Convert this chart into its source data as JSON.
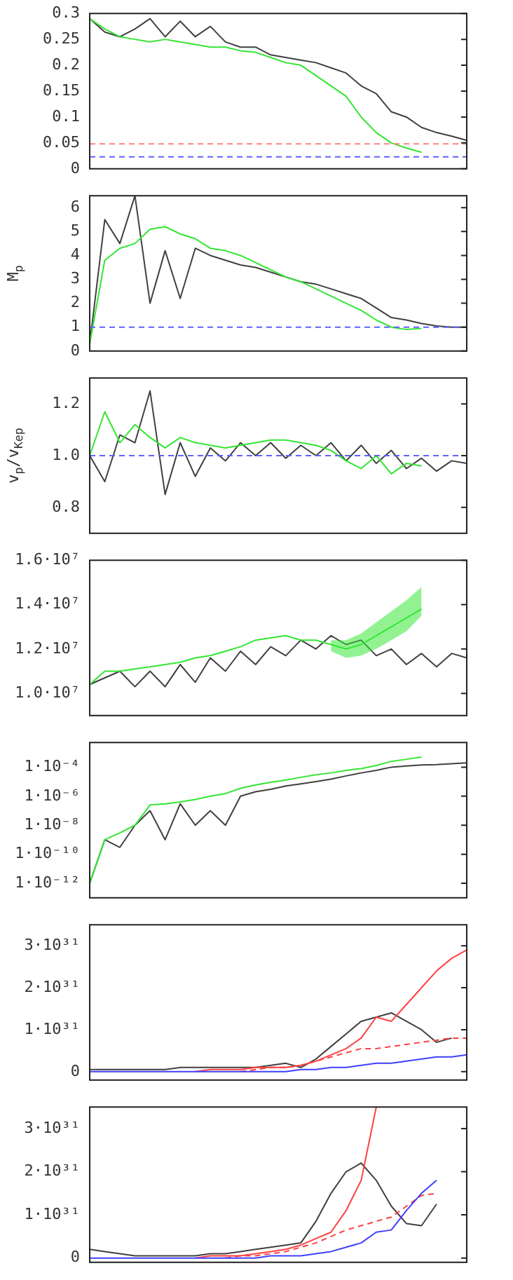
{
  "chart_data": [
    {
      "type": "line",
      "tick_labels": "y",
      "categories": [
        null,
        null,
        null,
        null,
        null,
        null,
        null,
        null,
        null,
        null,
        null,
        null,
        null,
        null,
        null,
        null,
        null,
        null,
        null,
        null,
        null,
        null,
        null,
        null,
        null,
        null
      ],
      "ylim": [
        0,
        0.3
      ],
      "yticks": [
        0,
        0.05,
        0.1,
        0.15,
        0.2,
        0.25,
        0.3
      ],
      "series": [
        {
          "color": "#404040",
          "values": [
            0.29,
            0.264,
            0.255,
            0.27,
            0.29,
            0.255,
            0.285,
            0.255,
            0.275,
            0.245,
            0.235,
            0.235,
            0.22,
            0.215,
            0.21,
            0.205,
            0.195,
            0.185,
            0.16,
            0.145,
            0.11,
            0.1,
            0.08,
            0.07,
            0.063,
            0.055
          ]
        },
        {
          "color": "#33e633",
          "values": [
            0.29,
            0.27,
            0.255,
            0.25,
            0.245,
            0.25,
            0.245,
            0.24,
            0.235,
            0.235,
            0.228,
            0.225,
            0.215,
            0.205,
            0.2,
            0.18,
            0.16,
            0.14,
            0.1,
            0.07,
            0.05,
            0.04,
            0.032,
            null,
            null,
            null
          ]
        }
      ],
      "ref_lines": [
        {
          "axis": "y",
          "value": 0.048,
          "color": "#ff8080",
          "line_style": "dashed"
        },
        {
          "axis": "y",
          "value": 0.023,
          "color": "#6060ff",
          "line_style": "dashed"
        }
      ]
    },
    {
      "type": "line",
      "tick_labels": "y",
      "ylabel": "M$_{p}$",
      "categories": [
        null,
        null,
        null,
        null,
        null,
        null,
        null,
        null,
        null,
        null,
        null,
        null,
        null,
        null,
        null,
        null,
        null,
        null,
        null,
        null,
        null,
        null,
        null,
        null,
        null,
        null
      ],
      "ylim": [
        0,
        6.5
      ],
      "yticks": [
        0,
        1,
        2,
        3,
        4,
        5,
        6
      ],
      "series": [
        {
          "color": "#404040",
          "values": [
            0.3,
            5.5,
            4.5,
            6.5,
            2.0,
            4.2,
            2.2,
            4.3,
            4.0,
            3.8,
            3.6,
            3.5,
            3.3,
            3.1,
            2.9,
            2.8,
            2.6,
            2.4,
            2.2,
            1.8,
            1.4,
            1.3,
            1.15,
            1.05,
            1.0,
            1.0
          ]
        },
        {
          "color": "#33e633",
          "values": [
            0.3,
            3.8,
            4.3,
            4.5,
            5.1,
            5.2,
            4.9,
            4.7,
            4.3,
            4.2,
            4.0,
            3.7,
            3.4,
            3.1,
            2.9,
            2.6,
            2.3,
            2.0,
            1.7,
            1.3,
            1.0,
            0.9,
            0.95,
            null,
            null,
            null
          ]
        }
      ],
      "ref_lines": [
        {
          "axis": "y",
          "value": 1,
          "color": "#6060ff",
          "line_style": "dashed"
        }
      ]
    },
    {
      "type": "line",
      "tick_labels": "y",
      "ylabel": "v$_{p}$/v$_{Kep}$",
      "categories": [
        null,
        null,
        null,
        null,
        null,
        null,
        null,
        null,
        null,
        null,
        null,
        null,
        null,
        null,
        null,
        null,
        null,
        null,
        null,
        null,
        null,
        null,
        null,
        null,
        null,
        null
      ],
      "ylim": [
        0.7,
        1.3
      ],
      "yticks": [
        0.8,
        {
          "value": 1,
          "label": "1.0"
        },
        1.2
      ],
      "series": [
        {
          "color": "#404040",
          "values": [
            1.0,
            0.9,
            1.08,
            1.05,
            1.25,
            0.85,
            1.05,
            0.92,
            1.03,
            0.98,
            1.05,
            1.0,
            1.05,
            0.99,
            1.04,
            1.0,
            1.05,
            0.98,
            1.04,
            0.97,
            1.02,
            0.95,
            0.99,
            0.94,
            0.98,
            0.97
          ]
        },
        {
          "color": "#33e633",
          "values": [
            1.0,
            1.17,
            1.05,
            1.12,
            1.07,
            1.03,
            1.07,
            1.05,
            1.04,
            1.03,
            1.04,
            1.05,
            1.06,
            1.06,
            1.05,
            1.04,
            1.02,
            0.98,
            0.95,
            1.0,
            0.93,
            0.97,
            0.96,
            null,
            null,
            null
          ]
        }
      ],
      "ref_lines": [
        {
          "axis": "y",
          "value": 1,
          "color": "#6060ff",
          "line_style": "dashed"
        }
      ]
    },
    {
      "type": "line",
      "tick_labels": "y",
      "categories": [
        null,
        null,
        null,
        null,
        null,
        null,
        null,
        null,
        null,
        null,
        null,
        null,
        null,
        null,
        null,
        null,
        null,
        null,
        null,
        null,
        null,
        null,
        null,
        null,
        null,
        null
      ],
      "ylim": [
        9000000,
        16000000
      ],
      "yticks": [
        {
          "value": 10000000,
          "label": "1.0·10⁷"
        },
        {
          "value": 12000000,
          "label": "1.2·10⁷"
        },
        {
          "value": 14000000,
          "label": "1.4·10⁷"
        },
        {
          "value": 16000000,
          "label": "1.6·10⁷"
        }
      ],
      "series": [
        {
          "color": "#404040",
          "values": [
            10400000,
            10700000,
            11000000,
            10300000,
            11000000,
            10300000,
            11300000,
            10500000,
            11600000,
            11000000,
            11900000,
            11300000,
            12100000,
            11700000,
            12400000,
            12000000,
            12600000,
            12200000,
            12400000,
            11700000,
            12000000,
            11300000,
            11800000,
            11200000,
            11800000,
            11600000
          ]
        },
        {
          "color": "#33e633",
          "values": [
            10400000,
            11000000,
            11000000,
            11100000,
            11200000,
            11300000,
            11400000,
            11600000,
            11700000,
            11900000,
            12100000,
            12400000,
            12500000,
            12600000,
            12400000,
            12400000,
            12200000,
            12000000,
            12200000,
            12600000,
            13000000,
            13400000,
            13800000,
            null,
            null,
            null
          ],
          "lower": [
            null,
            null,
            null,
            null,
            null,
            null,
            null,
            null,
            null,
            null,
            null,
            null,
            null,
            null,
            null,
            null,
            11900000,
            11600000,
            11700000,
            12000000,
            12400000,
            12800000,
            13500000,
            null,
            null,
            null
          ],
          "upper": [
            null,
            null,
            null,
            null,
            null,
            null,
            null,
            null,
            null,
            null,
            null,
            null,
            null,
            null,
            null,
            null,
            12400000,
            12400000,
            12700000,
            13200000,
            13700000,
            14200000,
            14800000,
            null,
            null,
            null
          ]
        }
      ]
    },
    {
      "type": "line",
      "tick_labels": "y",
      "log": "y",
      "categories": [
        null,
        null,
        null,
        null,
        null,
        null,
        null,
        null,
        null,
        null,
        null,
        null,
        null,
        null,
        null,
        null,
        null,
        null,
        null,
        null,
        null,
        null,
        null,
        null,
        null,
        null
      ],
      "ylim": [
        1e-13,
        0.005
      ],
      "yticks": [
        {
          "value": 1e-12,
          "label": "1·10⁻¹²"
        },
        {
          "value": 1e-10,
          "label": "1·10⁻¹⁰"
        },
        {
          "value": 1e-08,
          "label": "1·10⁻⁸"
        },
        {
          "value": 1e-06,
          "label": "1·10⁻⁶"
        },
        {
          "value": 0.0001,
          "label": "1·10⁻⁴"
        }
      ],
      "series": [
        {
          "color": "#404040",
          "values": [
            1e-12,
            1e-09,
            3e-10,
            1e-08,
            1e-07,
            1e-09,
            3e-07,
            1e-08,
            1e-07,
            1e-08,
            1e-06,
            2e-06,
            3e-06,
            5e-06,
            7e-06,
            1e-05,
            1.5e-05,
            2.5e-05,
            4e-05,
            6e-05,
            0.0001,
            0.00012,
            0.00014,
            0.00015,
            0.00017,
            0.0002
          ]
        },
        {
          "color": "#33e633",
          "values": [
            1e-12,
            1e-09,
            3e-09,
            1e-08,
            2.5e-07,
            3e-07,
            4e-07,
            6e-07,
            1e-06,
            1.5e-06,
            3.5e-06,
            6e-06,
            9e-06,
            1.3e-05,
            2e-05,
            3e-05,
            4e-05,
            6e-05,
            8e-05,
            0.00013,
            0.00025,
            0.00035,
            0.0005,
            null,
            null,
            null
          ]
        }
      ]
    },
    {
      "type": "line",
      "tick_labels": "y",
      "categories": [
        null,
        null,
        null,
        null,
        null,
        null,
        null,
        null,
        null,
        null,
        null,
        null,
        null,
        null,
        null,
        null,
        null,
        null,
        null,
        null,
        null,
        null,
        null,
        null,
        null,
        null
      ],
      "ylim": [
        -2e+30,
        3.5e+31
      ],
      "yticks": [
        0,
        {
          "value": 1e+31,
          "label": "1·10³¹"
        },
        {
          "value": 2e+31,
          "label": "2·10³¹"
        },
        {
          "value": 3e+31,
          "label": "3·10³¹"
        }
      ],
      "series": [
        {
          "color": "#404040",
          "values": [
            5e+29,
            5e+29,
            5e+29,
            5e+29,
            5e+29,
            5e+29,
            1e+30,
            1e+30,
            1e+30,
            1e+30,
            1e+30,
            1e+30,
            1.5e+30,
            2e+30,
            1e+30,
            3e+30,
            6e+30,
            9e+30,
            1.2e+31,
            1.3e+31,
            1.4e+31,
            1.2e+31,
            1e+31,
            7e+30,
            8e+30,
            null
          ]
        },
        {
          "color": "#ff4040",
          "values": [
            null,
            null,
            null,
            null,
            null,
            null,
            null,
            0,
            5e+29,
            5e+29,
            5e+29,
            1e+30,
            1e+30,
            1e+30,
            1.5e+30,
            2.5e+30,
            4e+30,
            5.5e+30,
            8e+30,
            1.3e+31,
            1.2e+31,
            1.6e+31,
            2e+31,
            2.4e+31,
            2.7e+31,
            2.9e+31
          ]
        },
        {
          "color": "#ff4040",
          "line_style": "dashed",
          "values": [
            null,
            null,
            null,
            null,
            null,
            null,
            null,
            null,
            null,
            null,
            0,
            5e+29,
            1e+30,
            1e+30,
            1.5e+30,
            2.5e+30,
            3.5e+30,
            4.5e+30,
            5.5e+30,
            5.5e+30,
            6e+30,
            6.5e+30,
            7e+30,
            7.5e+30,
            8e+30,
            8e+30
          ]
        },
        {
          "color": "#4040ff",
          "values": [
            0,
            0,
            0,
            0,
            0,
            0,
            0,
            0,
            0,
            0,
            0,
            0,
            0,
            0,
            5e+29,
            5e+29,
            1e+30,
            1e+30,
            1.5e+30,
            2e+30,
            2e+30,
            2.5e+30,
            3e+30,
            3.5e+30,
            3.5e+30,
            4e+30
          ]
        }
      ]
    },
    {
      "type": "line",
      "tick_labels": "y",
      "categories": [
        null,
        null,
        null,
        null,
        null,
        null,
        null,
        null,
        null,
        null,
        null,
        null,
        null,
        null,
        null,
        null,
        null,
        null,
        null,
        null,
        null,
        null,
        null,
        null,
        null,
        null
      ],
      "ylim": [
        -1e+30,
        3.5e+31
      ],
      "yticks": [
        0,
        {
          "value": 1e+31,
          "label": "1·10³¹"
        },
        {
          "value": 2e+31,
          "label": "2·10³¹"
        },
        {
          "value": 3e+31,
          "label": "3·10³¹"
        }
      ],
      "series": [
        {
          "color": "#404040",
          "values": [
            2e+30,
            1.5e+30,
            1e+30,
            5e+29,
            5e+29,
            5e+29,
            5e+29,
            5e+29,
            1e+30,
            1e+30,
            1.5e+30,
            2e+30,
            2.5e+30,
            3e+30,
            3.5e+30,
            8.5e+30,
            1.5e+31,
            2e+31,
            2.2e+31,
            1.8e+31,
            1.2e+31,
            8e+30,
            7.5e+30,
            1.25e+31,
            null,
            null
          ]
        },
        {
          "color": "#ff4040",
          "values": [
            null,
            null,
            null,
            null,
            null,
            null,
            null,
            0,
            5e+29,
            5e+29,
            5e+29,
            1e+30,
            1.5e+30,
            2e+30,
            3e+30,
            4.5e+30,
            6e+30,
            1.1e+31,
            1.8e+31,
            3.5e+31,
            null,
            null,
            null,
            null,
            null,
            null
          ]
        },
        {
          "color": "#ff4040",
          "line_style": "dashed",
          "values": [
            null,
            null,
            null,
            null,
            null,
            null,
            null,
            null,
            null,
            0,
            5e+29,
            5e+29,
            1e+30,
            1.5e+30,
            2.5e+30,
            3.5e+30,
            5e+30,
            6.5e+30,
            7.5e+30,
            8.5e+30,
            9.5e+30,
            1.2e+31,
            1.45e+31,
            1.5e+31,
            null,
            null
          ]
        },
        {
          "color": "#4040ff",
          "values": [
            0,
            0,
            0,
            0,
            0,
            0,
            0,
            0,
            0,
            0,
            0,
            0,
            5e+29,
            5e+29,
            5e+29,
            1e+30,
            1.5e+30,
            2.5e+30,
            3.5e+30,
            6e+30,
            6.5e+30,
            1.1e+31,
            1.5e+31,
            1.8e+31,
            null,
            null
          ]
        }
      ]
    }
  ]
}
